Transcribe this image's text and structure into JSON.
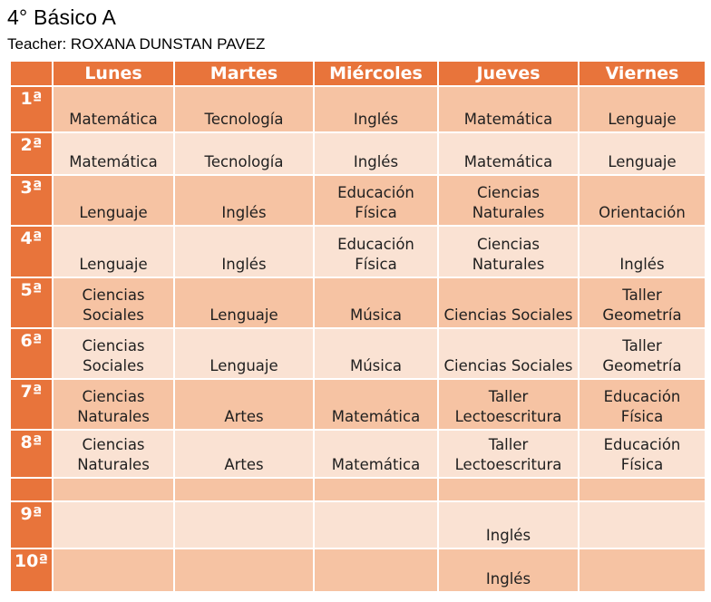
{
  "page": {
    "title": "4° Básico A",
    "teacher_label": "Teacher: ROXANA DUNSTAN PAVEZ"
  },
  "colors": {
    "header_orange": "#E8743B",
    "row_dark_peach": "#F6C3A3",
    "row_light_peach": "#FAE2D3",
    "header_text": "#FFFFFF",
    "cell_text": "#1F1F1F"
  },
  "timetable": {
    "days": [
      "Lunes",
      "Martes",
      "Miércoles",
      "Jueves",
      "Viernes"
    ],
    "rows": [
      {
        "period": "1ª",
        "cells": [
          "Matemática",
          "Tecnología",
          "Inglés",
          "Matemática",
          "Lenguaje"
        ]
      },
      {
        "period": "2ª",
        "cells": [
          "Matemática",
          "Tecnología",
          "Inglés",
          "Matemática",
          "Lenguaje"
        ]
      },
      {
        "period": "3ª",
        "cells": [
          "Lenguaje",
          "Inglés",
          "Educación Física",
          "Ciencias Naturales",
          "Orientación"
        ]
      },
      {
        "period": "4ª",
        "cells": [
          "Lenguaje",
          "Inglés",
          "Educación Física",
          "Ciencias Naturales",
          "Inglés"
        ]
      },
      {
        "period": "5ª",
        "cells": [
          "Ciencias Sociales",
          "Lenguaje",
          "Música",
          "Ciencias Sociales",
          "Taller Geometría"
        ]
      },
      {
        "period": "6ª",
        "cells": [
          "Ciencias Sociales",
          "Lenguaje",
          "Música",
          "Ciencias Sociales",
          "Taller Geometría"
        ]
      },
      {
        "period": "7ª",
        "cells": [
          "Ciencias Naturales",
          "Artes",
          "Matemática",
          "Taller Lectoescritura",
          "Educación Física"
        ]
      },
      {
        "period": "8ª",
        "cells": [
          "Ciencias Naturales",
          "Artes",
          "Matemática",
          "Taller Lectoescritura",
          "Educación Física"
        ]
      },
      {
        "period": "",
        "cells": [
          "",
          "",
          "",
          "",
          ""
        ]
      },
      {
        "period": "9ª",
        "cells": [
          "",
          "",
          "",
          "Inglés",
          ""
        ]
      },
      {
        "period": "10ª",
        "cells": [
          "",
          "",
          "",
          "Inglés",
          ""
        ]
      }
    ]
  }
}
